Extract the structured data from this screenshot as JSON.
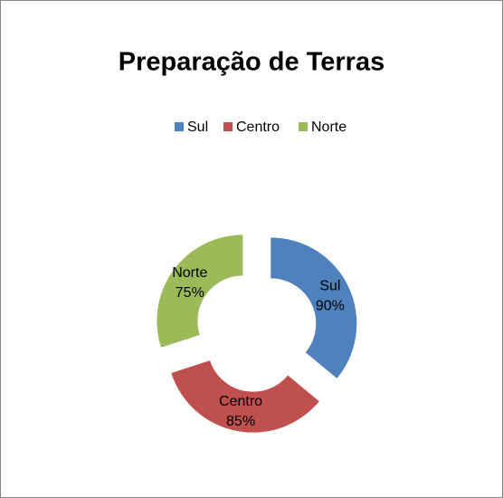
{
  "chart_data": {
    "type": "doughnut",
    "title": "Preparação de Terras",
    "categories": [
      "Sul",
      "Centro",
      "Norte"
    ],
    "values": [
      90,
      85,
      75
    ],
    "value_labels": [
      "90%",
      "85%",
      "75%"
    ],
    "colors": [
      "#4f81bd",
      "#c0504d",
      "#9bbb59"
    ],
    "legend": "top"
  }
}
